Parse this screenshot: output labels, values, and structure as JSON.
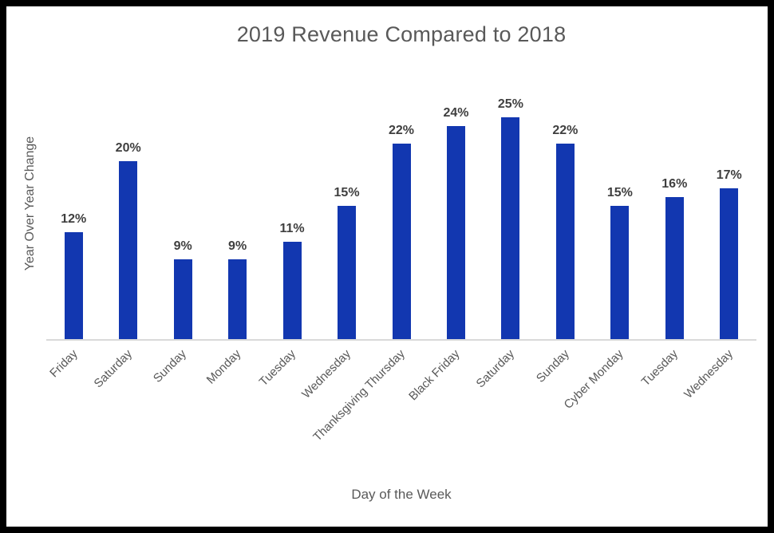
{
  "chart_data": {
    "type": "bar",
    "title": "2019 Revenue Compared to 2018",
    "xlabel": "Day of the Week",
    "ylabel": "Year Over Year Change",
    "categories": [
      "Friday",
      "Saturday",
      "Sunday",
      "Monday",
      "Tuesday",
      "Wednesday",
      "Thanksgiving Thursday",
      "Black Friday",
      "Saturday",
      "Sunday",
      "Cyber Monday",
      "Tuesday",
      "Wednesday"
    ],
    "values": [
      12,
      20,
      9,
      9,
      11,
      15,
      22,
      24,
      25,
      22,
      15,
      16,
      17
    ],
    "data_labels": [
      "12%",
      "20%",
      "9%",
      "9%",
      "11%",
      "15%",
      "22%",
      "24%",
      "25%",
      "22%",
      "15%",
      "16%",
      "17%"
    ],
    "ylim": [
      0,
      30
    ],
    "grid": false,
    "legend": false,
    "x_tick_rotation_deg": 45,
    "colors": {
      "bar": "#1237B0",
      "axis_line": "#D9D9D9",
      "title_text": "#595959",
      "data_label_text": "#3F3F3F",
      "axis_text": "#595959",
      "frame_border": "#000000",
      "background": "#FFFFFF"
    }
  }
}
